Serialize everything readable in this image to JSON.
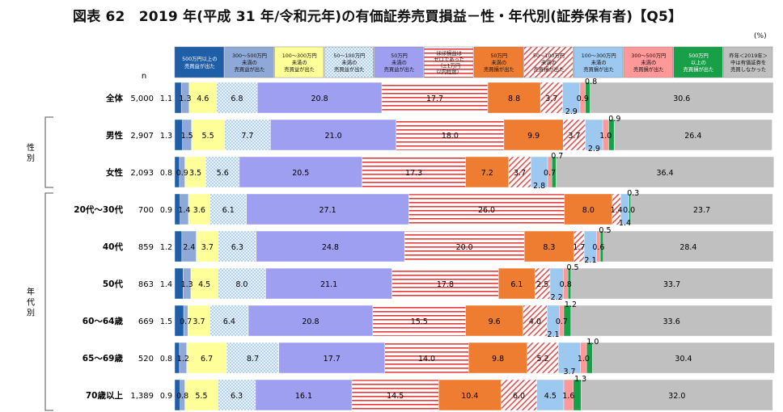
{
  "title": "図表 62　2019 年(平成 31 年/令和元年)の有価証券売買損益－性・年代別(証券保有者)【Q5】",
  "unit": "(%)",
  "n_label": "n",
  "group_labels": [
    {
      "text": "性\n別"
    },
    {
      "text": "年\n代\n別"
    }
  ],
  "chart_data": {
    "type": "bar",
    "stacked": true,
    "orientation": "horizontal",
    "xlim": [
      0,
      100
    ],
    "categories": [
      "全体",
      "男性",
      "女性",
      "20代～30代",
      "40代",
      "50代",
      "60～64歳",
      "65～69歳",
      "70歳以上"
    ],
    "n": [
      "5,000",
      "2,907",
      "2,093",
      "700",
      "859",
      "863",
      "669",
      "520",
      "1,389"
    ],
    "series": [
      {
        "name": "500万円以上の売買益が出た",
        "color": "#1f5fa8",
        "pattern": "solid",
        "values": [
          1.1,
          1.3,
          0.8,
          0.9,
          1.2,
          1.4,
          1.5,
          0.8,
          0.9
        ]
      },
      {
        "name": "300～500万円未満の売買益が出た",
        "color": "#8ea8d8",
        "pattern": "solid",
        "values": [
          1.3,
          1.5,
          0.9,
          1.4,
          2.4,
          1.3,
          0.7,
          1.2,
          0.8
        ]
      },
      {
        "name": "100～300万円未満の売買益が出た",
        "color": "#ffff99",
        "pattern": "solid",
        "values": [
          4.6,
          5.5,
          3.5,
          3.6,
          3.7,
          4.5,
          3.7,
          6.7,
          5.5
        ]
      },
      {
        "name": "50～100万円未満の売買益が出た",
        "color": "#e4f0fa",
        "pattern": "dots",
        "values": [
          6.8,
          7.7,
          5.6,
          6.1,
          6.3,
          8.0,
          6.4,
          8.7,
          6.3
        ]
      },
      {
        "name": "50万円未満の売買益が出た",
        "color": "#9f9ff2",
        "pattern": "solid",
        "values": [
          20.8,
          21.0,
          20.5,
          27.1,
          24.8,
          21.1,
          20.8,
          17.7,
          16.1
        ]
      },
      {
        "name": "ほぼ損益はゼロであった（±1万円以内程度）",
        "color": "#e63a3a",
        "pattern": "hstripes",
        "values": [
          17.7,
          18.0,
          17.3,
          26.0,
          20.0,
          17.8,
          15.5,
          14.0,
          14.5
        ]
      },
      {
        "name": "50万円未満の売買損が出た",
        "color": "#ee7d32",
        "pattern": "solid",
        "values": [
          8.8,
          9.9,
          7.2,
          8.0,
          8.3,
          6.1,
          9.6,
          9.8,
          10.4
        ]
      },
      {
        "name": "50～100万円未満の売買損が出た",
        "color": "#e05050",
        "pattern": "diag",
        "values": [
          3.7,
          3.7,
          3.7,
          1.4,
          1.7,
          2.5,
          4.0,
          5.2,
          6.0
        ]
      },
      {
        "name": "100～300万円未満の売買損が出た",
        "color": "#9dc8f0",
        "pattern": "solid",
        "values": [
          2.9,
          2.9,
          2.8,
          1.4,
          2.1,
          2.2,
          2.1,
          3.7,
          4.5
        ]
      },
      {
        "name": "300～500万円未満の売買損が出た",
        "color": "#ff9999",
        "pattern": "solid",
        "values": [
          0.9,
          1.0,
          0.7,
          0.0,
          0.6,
          0.8,
          0.7,
          1.0,
          1.6
        ]
      },
      {
        "name": "500万円以上の売買損が出た",
        "color": "#18a048",
        "pattern": "solid",
        "values": [
          0.8,
          0.9,
          0.7,
          0.3,
          0.5,
          0.5,
          1.2,
          1.0,
          1.3
        ]
      },
      {
        "name": "昨年＜2019年＞中は有価証券を売買しなかった",
        "color": "#c0c0c0",
        "pattern": "solid",
        "values": [
          30.6,
          26.4,
          36.4,
          23.7,
          28.4,
          33.7,
          33.6,
          30.4,
          32.0
        ]
      }
    ],
    "legend": {
      "placement": "top",
      "lines": [
        [
          "500万円以上の",
          "売買益が出た"
        ],
        [
          "300～500万円",
          "未満の",
          "売買益が出た"
        ],
        [
          "100～300万円",
          "未満の",
          "売買益が出た"
        ],
        [
          "50～100万円",
          "未満の",
          "売買益が出た"
        ],
        [
          "50万円",
          "未満の",
          "売買益が出た"
        ],
        [
          "ほぼ損益は",
          "ゼロであった",
          "（±1万円",
          "以内程度）"
        ],
        [
          "50万円",
          "未満の",
          "売買損が出た"
        ],
        [
          "50～100万円",
          "未満の",
          "売買損が出た"
        ],
        [
          "100～300万円",
          "未満の",
          "売買損が出た"
        ],
        [
          "300～500万円",
          "未満の",
          "売買損が出た"
        ],
        [
          "500万円",
          "以上の",
          "売買損が出た"
        ],
        [
          "昨年＜2019年＞",
          "中は有価証券を",
          "売買しなかった"
        ]
      ]
    }
  }
}
